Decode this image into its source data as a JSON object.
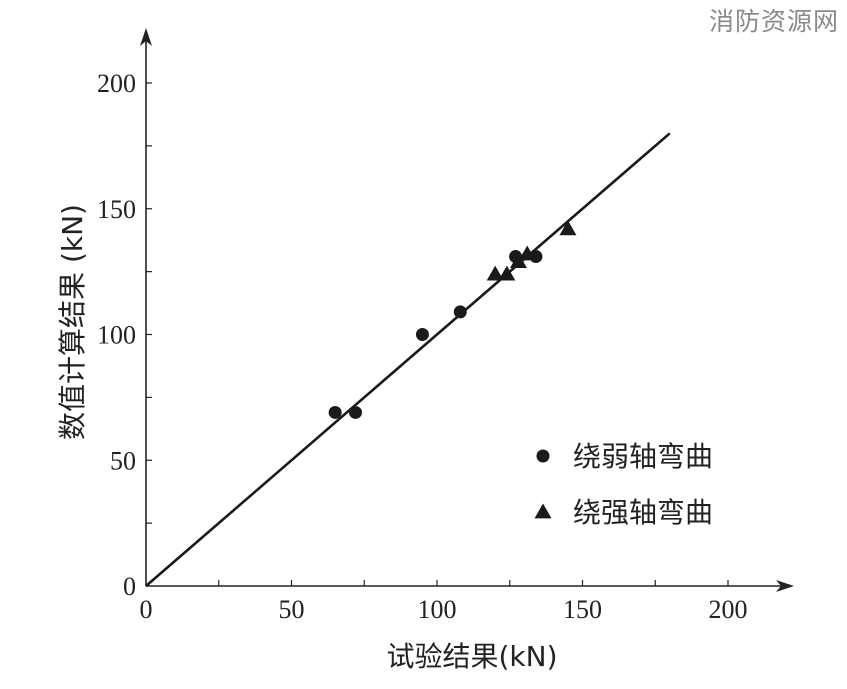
{
  "watermark": "消防资源网",
  "chart_data": {
    "type": "scatter",
    "xlabel": "试验结果(kN)",
    "ylabel": "数值计算结果 (kN)",
    "xlim": [
      0,
      220
    ],
    "ylim": [
      0,
      220
    ],
    "x_ticks": [
      0,
      50,
      100,
      150,
      200
    ],
    "y_ticks": [
      0,
      50,
      100,
      150,
      200
    ],
    "grid": false,
    "legend_position": "bottom-right",
    "reference_line": {
      "x": [
        0,
        180
      ],
      "y": [
        0,
        180
      ]
    },
    "series": [
      {
        "name": "绕弱轴弯曲",
        "marker": "circle",
        "color": "#1a1a1a",
        "points": [
          [
            65,
            69
          ],
          [
            72,
            69
          ],
          [
            95,
            100
          ],
          [
            108,
            109
          ],
          [
            127,
            131
          ],
          [
            134,
            131
          ]
        ]
      },
      {
        "name": "绕强轴弯曲",
        "marker": "triangle",
        "color": "#1a1a1a",
        "points": [
          [
            120,
            124
          ],
          [
            124,
            124
          ],
          [
            128,
            129
          ],
          [
            131,
            132
          ],
          [
            145,
            142
          ]
        ]
      }
    ]
  }
}
